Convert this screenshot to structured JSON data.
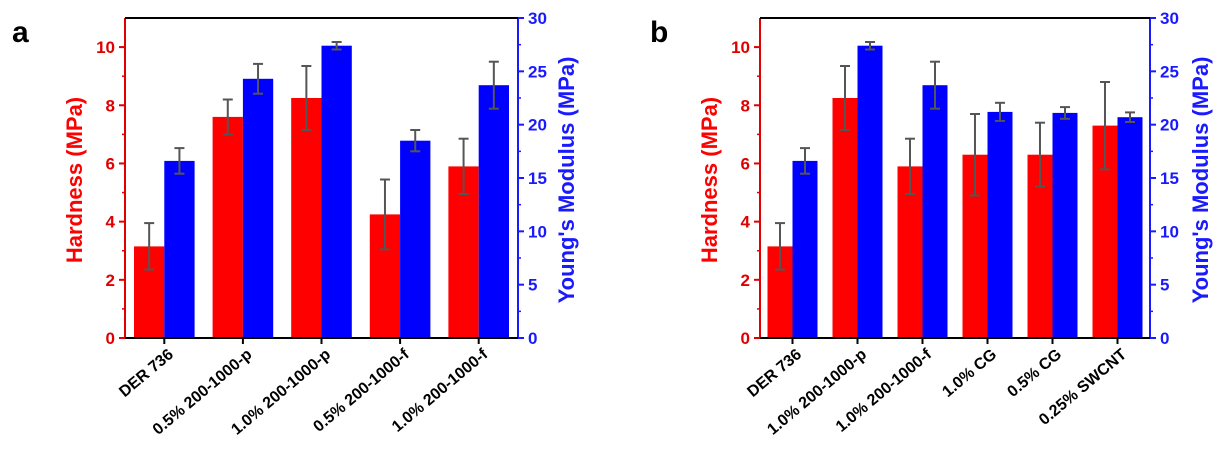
{
  "chart_data": [
    {
      "panel": "a",
      "type": "bar",
      "categories": [
        "DER 736",
        "0.5% 200-1000-p",
        "1.0% 200-1000-p",
        "0.5% 200-1000-f",
        "1.0% 200-1000-f"
      ],
      "series": [
        {
          "name": "Hardness (MPa)",
          "axis": "left",
          "color": "#ff0000",
          "values": [
            3.15,
            7.6,
            8.25,
            4.25,
            5.9
          ],
          "errors": [
            0.8,
            0.6,
            1.1,
            1.2,
            0.95
          ]
        },
        {
          "name": "Young's Modulus (MPa)",
          "axis": "right",
          "color": "#0000ff",
          "values": [
            16.6,
            24.3,
            27.4,
            18.5,
            23.7
          ],
          "errors": [
            1.2,
            1.4,
            0.35,
            1.0,
            2.2
          ]
        }
      ],
      "ylabel_left": "Hardness (MPa)",
      "ylabel_right": "Young's Modulus (MPa)",
      "ylim_left": [
        0,
        11
      ],
      "ylim_right": [
        0,
        30
      ],
      "yticks_left": [
        "0",
        "2",
        "4",
        "6",
        "8",
        "10"
      ],
      "yticks_right": [
        "0",
        "5",
        "10",
        "15",
        "20",
        "25",
        "30"
      ]
    },
    {
      "panel": "b",
      "type": "bar",
      "categories": [
        "DER 736",
        "1.0% 200-1000-p",
        "1.0% 200-1000-f",
        "1.0% CG",
        "0.5% CG",
        "0.25% SWCNT"
      ],
      "series": [
        {
          "name": "Hardness (MPa)",
          "axis": "left",
          "color": "#ff0000",
          "values": [
            3.15,
            8.25,
            5.9,
            6.3,
            6.3,
            7.3
          ],
          "errors": [
            0.8,
            1.1,
            0.95,
            1.4,
            1.1,
            1.5
          ]
        },
        {
          "name": "Young's Modulus (MPa)",
          "axis": "right",
          "color": "#0000ff",
          "values": [
            16.6,
            27.4,
            23.7,
            21.2,
            21.1,
            20.7
          ],
          "errors": [
            1.2,
            0.35,
            2.2,
            0.85,
            0.55,
            0.45
          ]
        }
      ],
      "ylabel_left": "Hardness (MPa)",
      "ylabel_right": "Young's Modulus (MPa)",
      "ylim_left": [
        0,
        11
      ],
      "ylim_right": [
        0,
        30
      ],
      "yticks_left": [
        "0",
        "2",
        "4",
        "6",
        "8",
        "10"
      ],
      "yticks_right": [
        "0",
        "5",
        "10",
        "15",
        "20",
        "25",
        "30"
      ]
    }
  ]
}
